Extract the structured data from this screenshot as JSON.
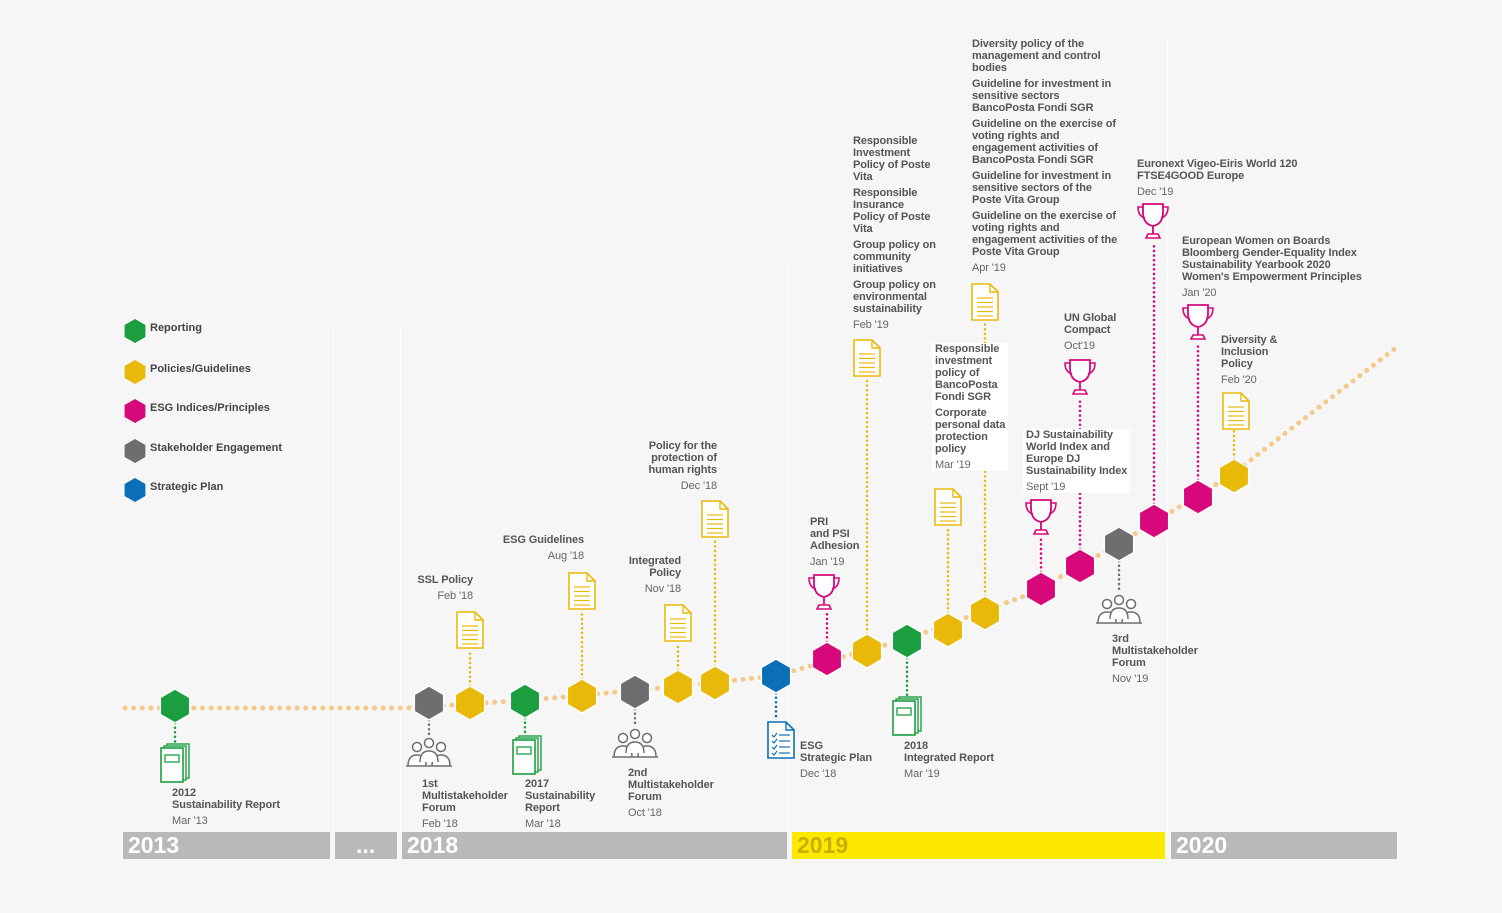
{
  "colors": {
    "reporting": "#1a9e3f",
    "policies": "#e9b90a",
    "esg_indices": "#d6087a",
    "stakeholder": "#6e6e6e",
    "strategic_plan": "#0b6fb8",
    "timeline_dots": "#f5c98a",
    "year_bar": "#b9b9b9",
    "year_bar_current": "#fde800"
  },
  "legend": [
    {
      "label": "Reporting",
      "category": "reporting"
    },
    {
      "label": "Policies/Guidelines",
      "category": "policies"
    },
    {
      "label": "ESG Indices/Principles",
      "category": "esg_indices"
    },
    {
      "label": "Stakeholder Engagement",
      "category": "stakeholder"
    },
    {
      "label": "Strategic Plan",
      "category": "strategic_plan"
    }
  ],
  "years": [
    {
      "label": "2013",
      "highlight": false
    },
    {
      "label": "...",
      "highlight": false
    },
    {
      "label": "2018",
      "highlight": false
    },
    {
      "label": "2019",
      "highlight": true
    },
    {
      "label": "2020",
      "highlight": false
    }
  ],
  "events": [
    {
      "category": "reporting",
      "icon": "report-icon",
      "title": "2012\nSustainability Report",
      "date": "Mar '13"
    },
    {
      "category": "stakeholder",
      "icon": "people-icon",
      "title": "1st\nMultistakeholder\nForum",
      "date": "Feb '18"
    },
    {
      "category": "policies",
      "icon": "document-icon",
      "title": "SSL Policy",
      "date": "Feb '18"
    },
    {
      "category": "reporting",
      "icon": "report-icon",
      "title": "2017\nSustainability\nReport",
      "date": "Mar '18"
    },
    {
      "category": "policies",
      "icon": "document-icon",
      "title": "ESG Guidelines",
      "date": "Aug '18"
    },
    {
      "category": "stakeholder",
      "icon": "people-icon",
      "title": "2nd\nMultistakeholder\nForum",
      "date": "Oct '18"
    },
    {
      "category": "policies",
      "icon": "document-icon",
      "title": "Integrated\nPolicy",
      "date": "Nov '18"
    },
    {
      "category": "policies",
      "icon": "document-icon",
      "title": "Policy for the\nprotection of\nhuman rights",
      "date": "Dec '18"
    },
    {
      "category": "strategic_plan",
      "icon": "checklist-icon",
      "title": "ESG\nStrategic Plan",
      "date": "Dec '18"
    },
    {
      "category": "esg_indices",
      "icon": "trophy-icon",
      "title": "PRI\nand PSI\nAdhesion",
      "date": "Jan '19"
    },
    {
      "category": "policies",
      "icon": "document-icon",
      "titles": [
        "Responsible\nInvestment\nPolicy of Poste\nVita",
        "Responsible\nInsurance\nPolicy of Poste\nVita",
        "Group policy on\ncommunity\ninitiatives",
        "Group policy on\nenvironmental\nsustainability"
      ],
      "date": "Feb '19"
    },
    {
      "category": "reporting",
      "icon": "report-icon",
      "title": "2018\nIntegrated Report",
      "date": "Mar '19"
    },
    {
      "category": "policies",
      "icon": "document-icon",
      "titles": [
        "Responsible\ninvestment\npolicy of\nBancoPosta\nFondi SGR",
        "Corporate\npersonal data\nprotection\npolicy"
      ],
      "date": "Mar '19"
    },
    {
      "category": "policies",
      "icon": "document-icon",
      "titles": [
        "Diversity policy of the\nmanagement and control\nbodies",
        "Guideline for investment in\nsensitive sectors\nBancoPosta Fondi SGR",
        "Guideline on the exercise of\nvoting rights and\nengagement activities of\nBancoPosta Fondi SGR",
        "Guideline for investment in\nsensitive sectors of the\nPoste Vita Group",
        "Guideline on the exercise of\nvoting rights and\nengagement activities of the\nPoste Vita Group"
      ],
      "date": "Apr '19"
    },
    {
      "category": "esg_indices",
      "icon": "trophy-icon",
      "title": "DJ Sustainability\nWorld Index and\nEurope DJ\nSustainability Index",
      "date": "Sept '19"
    },
    {
      "category": "esg_indices",
      "icon": "trophy-icon",
      "title": "UN Global\nCompact",
      "date": "Oct'19"
    },
    {
      "category": "stakeholder",
      "icon": "people-icon",
      "title": "3rd\nMultistakeholder\nForum",
      "date": "Nov '19"
    },
    {
      "category": "esg_indices",
      "icon": "trophy-icon",
      "title": "Euronext Vigeo-Eiris World 120\nFTSE4GOOD Europe",
      "date": "Dec '19"
    },
    {
      "category": "esg_indices",
      "icon": "trophy-icon",
      "title": "European Women on Boards\nBloomberg Gender-Equality Index\nSustainability Yearbook 2020\nWomen's Empowerment Principles",
      "date": "Jan '20"
    },
    {
      "category": "policies",
      "icon": "document-icon",
      "title": "Diversity &\nInclusion\nPolicy",
      "date": "Feb '20"
    }
  ]
}
